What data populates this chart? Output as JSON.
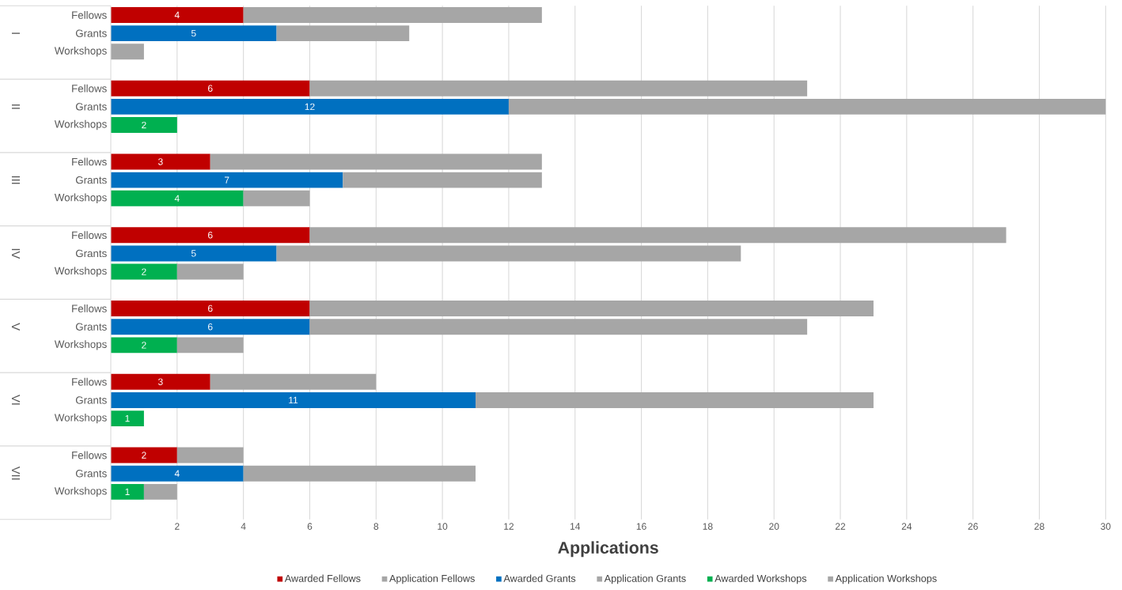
{
  "chart_data": {
    "type": "bar",
    "orientation": "horizontal",
    "stacked": true,
    "xlabel": "Applications",
    "categories": [
      "Fellows",
      "Grants",
      "Workshops",
      null,
      "Fellows",
      "Grants",
      "Workshops",
      null,
      "Fellows",
      "Grants",
      "Workshops",
      null,
      "Fellows",
      "Grants",
      "Workshops",
      null,
      "Fellows",
      "Grants",
      "Workshops",
      null,
      "Fellows",
      "Grants",
      "Workshops",
      null,
      "Fellows",
      "Grants",
      "Workshops",
      null
    ],
    "series": [
      {
        "name": "Awarded Fellows",
        "color": "#c00000",
        "values": [
          4,
          null,
          null,
          null,
          6,
          null,
          null,
          null,
          3,
          null,
          null,
          null,
          6,
          null,
          null,
          null,
          6,
          null,
          null,
          null,
          3,
          null,
          null,
          null,
          2,
          null,
          null,
          null
        ],
        "value_labels": [
          "4",
          null,
          null,
          null,
          "6",
          null,
          null,
          null,
          "3",
          null,
          null,
          null,
          "6",
          null,
          null,
          null,
          "6",
          null,
          null,
          null,
          "3",
          null,
          null,
          null,
          "2",
          null,
          null,
          null
        ]
      },
      {
        "name": "Application Fellows",
        "color": "#a6a6a6",
        "values": [
          9,
          null,
          null,
          null,
          15,
          null,
          null,
          null,
          10,
          null,
          null,
          null,
          21,
          null,
          null,
          null,
          17,
          null,
          null,
          null,
          5,
          null,
          null,
          null,
          2,
          null,
          null,
          null
        ]
      },
      {
        "name": "Awarded Grants",
        "color": "#0070c0",
        "values": [
          null,
          5,
          null,
          null,
          null,
          12,
          null,
          null,
          null,
          7,
          null,
          null,
          null,
          5,
          null,
          null,
          null,
          6,
          null,
          null,
          null,
          11,
          null,
          null,
          null,
          4,
          null,
          null
        ],
        "value_labels": [
          null,
          "5",
          null,
          null,
          null,
          "12",
          null,
          null,
          null,
          "7",
          null,
          null,
          null,
          "5",
          null,
          null,
          null,
          "6",
          null,
          null,
          null,
          "11",
          null,
          null,
          null,
          "4",
          null,
          null
        ]
      },
      {
        "name": "Application Grants",
        "color": "#a6a6a6",
        "values": [
          null,
          4,
          null,
          null,
          null,
          18,
          null,
          null,
          null,
          6,
          null,
          null,
          null,
          14,
          null,
          null,
          null,
          15,
          null,
          null,
          null,
          12,
          null,
          null,
          null,
          7,
          null,
          null
        ]
      },
      {
        "name": "Awarded Workshops",
        "color": "#00b050",
        "values": [
          null,
          null,
          null,
          null,
          null,
          null,
          2,
          null,
          null,
          null,
          4,
          null,
          null,
          null,
          2,
          null,
          null,
          null,
          2,
          null,
          null,
          null,
          1,
          null,
          null,
          null,
          1,
          null
        ],
        "value_labels": [
          null,
          null,
          null,
          null,
          null,
          null,
          "2",
          null,
          null,
          null,
          "4",
          null,
          null,
          null,
          "2",
          null,
          null,
          null,
          "2",
          null,
          null,
          null,
          "1",
          null,
          null,
          null,
          "1",
          null
        ]
      },
      {
        "name": "Application Workshops",
        "color": "#a6a6a6",
        "values": [
          null,
          null,
          1,
          null,
          null,
          null,
          null,
          null,
          null,
          null,
          2,
          null,
          null,
          null,
          2,
          null,
          null,
          null,
          2,
          null,
          null,
          null,
          null,
          null,
          null,
          null,
          1,
          null
        ]
      }
    ],
    "annotations": [
      "I",
      "II",
      "III",
      "IV",
      "V",
      "VI",
      "VII"
    ],
    "xlim": [
      0,
      30
    ],
    "xticks": [
      2,
      4,
      6,
      8,
      10,
      12,
      14,
      16,
      18,
      20,
      22,
      24,
      26,
      28,
      30
    ],
    "grid": "x",
    "legend": "bottom"
  }
}
